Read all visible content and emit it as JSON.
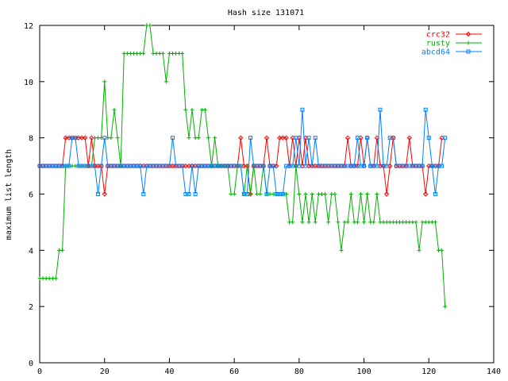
{
  "chart_data": {
    "type": "line",
    "title": "Hash size 131071",
    "xlabel": "",
    "ylabel": "maximum list length",
    "xlim": [
      0,
      140
    ],
    "ylim": [
      0,
      12
    ],
    "xticks": [
      0,
      20,
      40,
      60,
      80,
      100,
      120,
      140
    ],
    "yticks": [
      0,
      2,
      4,
      6,
      8,
      10,
      12
    ],
    "grid": false,
    "legend_position": "top-right",
    "series": [
      {
        "name": "crc32",
        "color": "#ff0000",
        "marker": "diamond",
        "values": [
          7,
          7,
          7,
          7,
          7,
          7,
          7,
          7,
          8,
          8,
          8,
          8,
          8,
          8,
          8,
          7,
          8,
          7,
          7,
          7,
          6,
          7,
          7,
          7,
          7,
          7,
          7,
          7,
          7,
          7,
          7,
          7,
          7,
          7,
          7,
          7,
          7,
          7,
          7,
          7,
          7,
          7,
          7,
          7,
          7,
          7,
          7,
          7,
          7,
          7,
          7,
          7,
          7,
          7,
          7,
          7,
          7,
          7,
          7,
          7,
          7,
          7,
          8,
          7,
          7,
          6,
          7,
          7,
          7,
          7,
          8,
          7,
          7,
          7,
          8,
          8,
          8,
          7,
          8,
          7,
          8,
          7,
          8,
          7,
          7,
          7,
          7,
          7,
          7,
          7,
          7,
          7,
          7,
          7,
          7,
          8,
          7,
          7,
          7,
          8,
          7,
          8,
          7,
          7,
          8,
          7,
          7,
          6,
          7,
          8,
          7,
          7,
          7,
          7,
          8,
          7,
          7,
          7,
          7,
          6,
          7,
          7,
          7,
          7,
          8
        ]
      },
      {
        "name": "rusty",
        "color": "#00b000",
        "marker": "plus",
        "values": [
          3,
          3,
          3,
          3,
          3,
          3,
          4,
          4,
          7,
          7,
          7,
          7,
          7,
          7,
          7,
          7,
          7,
          8,
          8,
          8,
          10,
          8,
          8,
          9,
          8,
          7,
          11,
          11,
          11,
          11,
          11,
          11,
          11,
          12,
          12,
          11,
          11,
          11,
          11,
          10,
          11,
          11,
          11,
          11,
          11,
          9,
          8,
          9,
          8,
          8,
          9,
          9,
          8,
          7,
          8,
          7,
          7,
          7,
          7,
          6,
          6,
          7,
          7,
          6,
          7,
          6,
          7,
          6,
          6,
          7,
          6,
          6,
          6,
          6,
          6,
          6,
          6,
          5,
          5,
          7,
          6,
          5,
          6,
          5,
          6,
          5,
          6,
          6,
          6,
          5,
          6,
          6,
          5,
          4,
          5,
          5,
          6,
          5,
          5,
          6,
          5,
          6,
          5,
          5,
          6,
          5,
          5,
          5,
          5,
          5,
          5,
          5,
          5,
          5,
          5,
          5,
          5,
          4,
          5,
          5,
          5,
          5,
          5,
          4,
          4,
          2
        ]
      },
      {
        "name": "abcd64",
        "color": "#0080ff",
        "marker": "square",
        "values": [
          7,
          7,
          7,
          7,
          7,
          7,
          7,
          7,
          7,
          7,
          8,
          8,
          7,
          7,
          7,
          7,
          7,
          7,
          6,
          7,
          8,
          7,
          7,
          7,
          7,
          7,
          7,
          7,
          7,
          7,
          7,
          7,
          6,
          7,
          7,
          7,
          7,
          7,
          7,
          7,
          7,
          8,
          7,
          7,
          7,
          6,
          6,
          7,
          6,
          7,
          7,
          7,
          7,
          7,
          7,
          7,
          7,
          7,
          7,
          7,
          7,
          7,
          7,
          6,
          6,
          8,
          7,
          7,
          7,
          7,
          6,
          7,
          7,
          6,
          6,
          6,
          7,
          7,
          7,
          8,
          7,
          9,
          7,
          8,
          7,
          8,
          7,
          7,
          7,
          7,
          7,
          7,
          7,
          7,
          7,
          7,
          7,
          7,
          8,
          7,
          7,
          8,
          7,
          7,
          7,
          9,
          7,
          7,
          8,
          8,
          7,
          7,
          7,
          7,
          7,
          7,
          7,
          7,
          7,
          9,
          8,
          7,
          6,
          7,
          7,
          8
        ]
      }
    ]
  }
}
